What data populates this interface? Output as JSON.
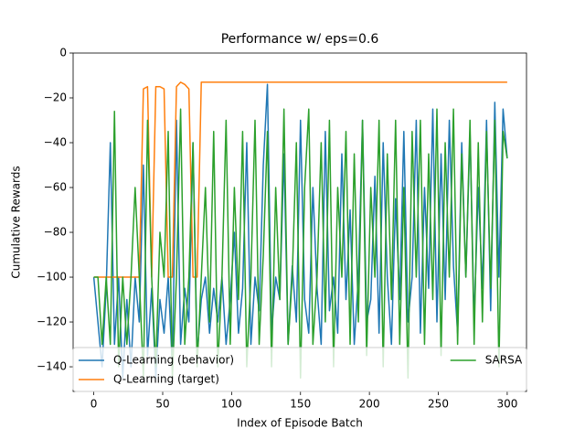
{
  "chart_data": {
    "type": "line",
    "title": "Performance w/ eps=0.6",
    "x_label": "Index of Episode Batch",
    "y_label": "Cumulative Rewards",
    "x": [
      0,
      3,
      6,
      9,
      12,
      15,
      18,
      21,
      24,
      27,
      30,
      33,
      36,
      39,
      42,
      45,
      48,
      51,
      54,
      57,
      60,
      63,
      66,
      69,
      72,
      75,
      78,
      81,
      84,
      87,
      90,
      93,
      96,
      99,
      102,
      105,
      108,
      111,
      114,
      117,
      120,
      123,
      126,
      129,
      132,
      135,
      138,
      141,
      144,
      147,
      150,
      153,
      156,
      159,
      162,
      165,
      168,
      171,
      174,
      177,
      180,
      183,
      186,
      189,
      192,
      195,
      198,
      201,
      204,
      207,
      210,
      213,
      216,
      219,
      222,
      225,
      228,
      231,
      234,
      237,
      240,
      243,
      246,
      249,
      252,
      255,
      258,
      261,
      264,
      267,
      270,
      273,
      276,
      279,
      282,
      285,
      288,
      291,
      294,
      297,
      300
    ],
    "series": [
      {
        "name": "Q-Learning (behavior)",
        "color": "#1f77b4",
        "values": [
          -100,
          -120,
          -140,
          -105,
          -40,
          -130,
          -100,
          -145,
          -110,
          -140,
          -100,
          -120,
          -50,
          -135,
          -105,
          -145,
          -110,
          -125,
          -100,
          -140,
          -30,
          -130,
          -105,
          -120,
          -40,
          -135,
          -110,
          -100,
          -125,
          -105,
          -120,
          -100,
          -130,
          -110,
          -80,
          -125,
          -105,
          -40,
          -130,
          -100,
          -115,
          -50,
          -14,
          -125,
          -100,
          -110,
          -45,
          -130,
          -95,
          -120,
          -30,
          -110,
          -125,
          -60,
          -105,
          -130,
          -35,
          -115,
          -100,
          -125,
          -45,
          -110,
          -70,
          -130,
          -100,
          -30,
          -120,
          -110,
          -55,
          -125,
          -40,
          -100,
          -130,
          -65,
          -110,
          -35,
          -120,
          -100,
          -30,
          -125,
          -60,
          -105,
          -25,
          -120,
          -45,
          -110,
          -30,
          -95,
          -125,
          -40,
          -100,
          -35,
          -120,
          -60,
          -105,
          -30,
          -115,
          -22,
          -100,
          -25,
          -47
        ]
      },
      {
        "name": "Q-Learning (target)",
        "color": "#ff7f0e",
        "values": [
          -100,
          -100,
          -100,
          -100,
          -100,
          -100,
          -100,
          -100,
          -100,
          -100,
          -100,
          -100,
          -16,
          -15,
          -100,
          -15,
          -15,
          -16,
          -100,
          -100,
          -15,
          -13,
          -14,
          -16,
          -100,
          -100,
          -13,
          -13,
          -13,
          -13,
          -13,
          -13,
          -13,
          -13,
          -13,
          -13,
          -13,
          -13,
          -13,
          -13,
          -13,
          -13,
          -13,
          -13,
          -13,
          -13,
          -13,
          -13,
          -13,
          -13,
          -13,
          -13,
          -13,
          -13,
          -13,
          -13,
          -13,
          -13,
          -13,
          -13,
          -13,
          -13,
          -13,
          -13,
          -13,
          -13,
          -13,
          -13,
          -13,
          -13,
          -13,
          -13,
          -13,
          -13,
          -13,
          -13,
          -13,
          -13,
          -13,
          -13,
          -13,
          -13,
          -13,
          -13,
          -13,
          -13,
          -13,
          -13,
          -13,
          -13,
          -13,
          -13,
          -13,
          -13,
          -13,
          -13,
          -13,
          -13,
          -13,
          -13,
          -13
        ]
      },
      {
        "name": "SARSA",
        "color": "#2ca02c",
        "values": [
          -100,
          -100,
          -130,
          -100,
          -130,
          -26,
          -140,
          -100,
          -130,
          -100,
          -60,
          -100,
          -145,
          -30,
          -100,
          -140,
          -80,
          -100,
          -35,
          -145,
          -100,
          -25,
          -130,
          -100,
          -40,
          -140,
          -100,
          -60,
          -120,
          -35,
          -140,
          -100,
          -30,
          -130,
          -60,
          -110,
          -35,
          -140,
          -100,
          -30,
          -130,
          -90,
          -35,
          -140,
          -60,
          -110,
          -25,
          -130,
          -100,
          -40,
          -145,
          -60,
          -25,
          -130,
          -100,
          -40,
          -120,
          -30,
          -140,
          -60,
          -100,
          -35,
          -130,
          -45,
          -120,
          -30,
          -135,
          -60,
          -100,
          -30,
          -140,
          -45,
          -110,
          -30,
          -130,
          -60,
          -145,
          -35,
          -100,
          -30,
          -130,
          -45,
          -110,
          -25,
          -135,
          -40,
          -100,
          -25,
          -130,
          -45,
          -100,
          -30,
          -130,
          -40,
          -120,
          -35,
          -105,
          -30,
          -140,
          -35,
          -47
        ]
      }
    ],
    "xlim": [
      -15,
      314
    ],
    "ylim": [
      -151,
      0
    ],
    "xticks": [
      0,
      50,
      100,
      150,
      200,
      250,
      300
    ],
    "yticks": [
      0,
      {
        "value": -20,
        "label": "−20"
      },
      {
        "value": -40,
        "label": "−40"
      },
      {
        "value": -60,
        "label": "−60"
      },
      {
        "value": -80,
        "label": "−80"
      },
      {
        "value": -100,
        "label": "−100"
      },
      {
        "value": -120,
        "label": "−120"
      },
      {
        "value": -140,
        "label": "−140"
      }
    ],
    "legend": "lower center"
  }
}
